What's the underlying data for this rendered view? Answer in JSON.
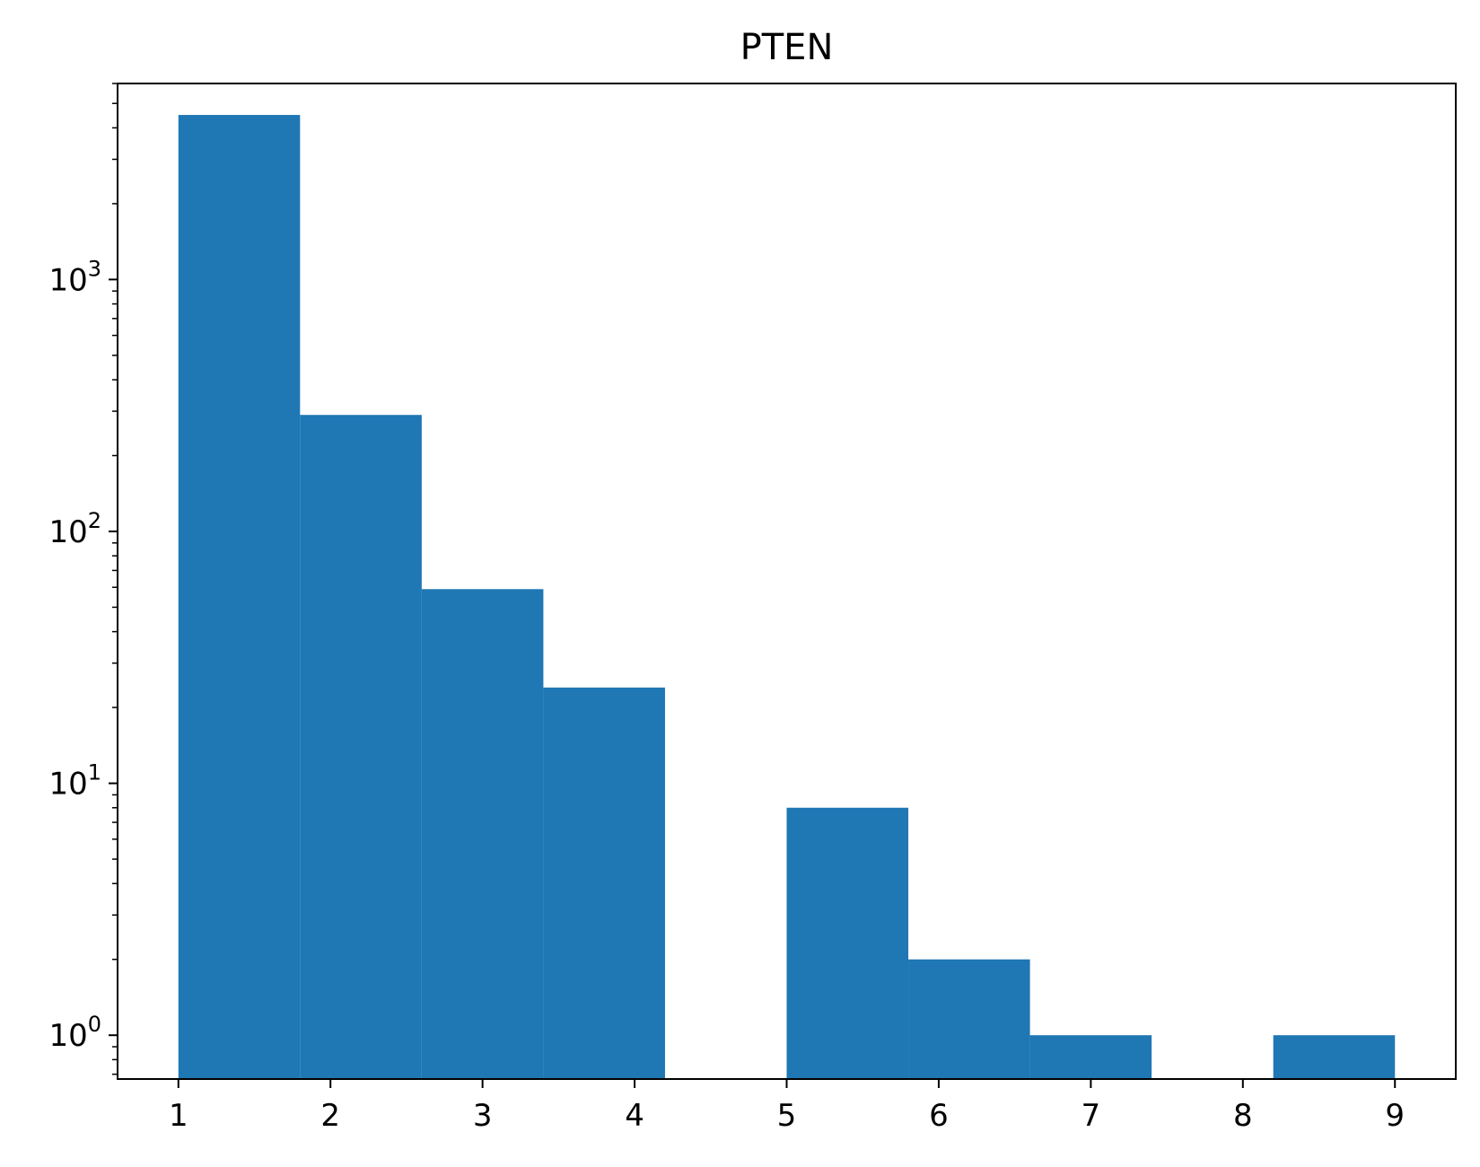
{
  "chart_data": {
    "type": "bar",
    "subtype": "histogram",
    "title": "PTEN",
    "xlabel": "",
    "ylabel": "",
    "yscale": "log",
    "bin_edges": [
      1.0,
      1.8,
      2.6,
      3.4,
      4.2,
      5.0,
      5.8,
      6.6,
      7.4,
      8.2,
      9.0
    ],
    "counts": [
      4500,
      290,
      59,
      24,
      0,
      8,
      2,
      1,
      0,
      1
    ],
    "xlim": [
      0.6,
      9.4
    ],
    "ylim": [
      0.67,
      6000
    ],
    "xticks": [
      1,
      2,
      3,
      4,
      5,
      6,
      7,
      8,
      9
    ],
    "xtick_labels": [
      "1",
      "2",
      "3",
      "4",
      "5",
      "6",
      "7",
      "8",
      "9"
    ],
    "yticks": [
      1,
      10,
      100,
      1000
    ],
    "ytick_labels": [
      {
        "base": "10",
        "exp": "0"
      },
      {
        "base": "10",
        "exp": "1"
      },
      {
        "base": "10",
        "exp": "2"
      },
      {
        "base": "10",
        "exp": "3"
      }
    ],
    "bar_color": "#1f77b4",
    "grid": false,
    "legend": "none"
  }
}
